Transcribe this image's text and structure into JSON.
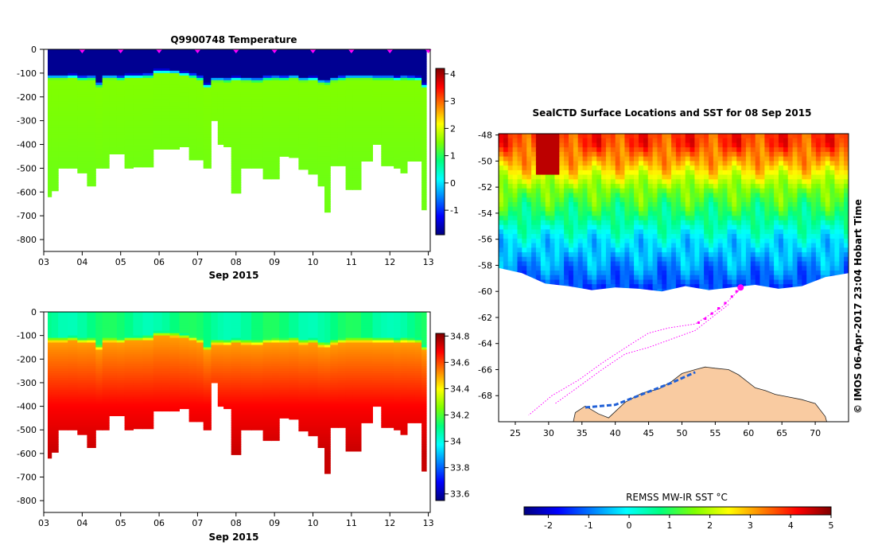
{
  "chart_data": [
    {
      "id": "temperature",
      "type": "heatmap",
      "title": "Q9900748  Temperature",
      "xlabel": "Sep 2015",
      "ylabel": "",
      "xlim": [
        3.0,
        13.05
      ],
      "ylim": [
        -850,
        0
      ],
      "x_ticks": [
        3,
        4,
        5,
        6,
        7,
        8,
        9,
        10,
        11,
        12,
        13
      ],
      "x_tick_labels": [
        "03",
        "04",
        "05",
        "06",
        "07",
        "08",
        "09",
        "10",
        "11",
        "12",
        "13"
      ],
      "y_ticks": [
        0,
        -100,
        -200,
        -300,
        -400,
        -500,
        -600,
        -700,
        -800
      ],
      "y_tick_labels": [
        "0",
        "-100",
        "-200",
        "-300",
        "-400",
        "-500",
        "-600",
        "-700",
        "-800"
      ],
      "colorbar": {
        "min": -1.9,
        "max": 4.2,
        "ticks": [
          4,
          3,
          2,
          1,
          0,
          -1
        ],
        "tick_labels": [
          "4",
          "3",
          "2",
          "1",
          "0",
          "-1"
        ]
      },
      "profile_times": [
        3.15,
        3.25,
        3.5,
        3.75,
        4.0,
        4.25,
        4.45,
        4.6,
        4.8,
        5.0,
        5.2,
        5.45,
        5.7,
        6.0,
        6.15,
        6.4,
        6.65,
        6.9,
        7.05,
        7.25,
        7.45,
        7.6,
        7.75,
        8.0,
        8.25,
        8.55,
        8.85,
        9.0,
        9.25,
        9.5,
        9.75,
        10.0,
        10.25,
        10.35,
        10.55,
        10.75,
        10.95,
        11.1,
        11.4,
        11.7,
        11.85,
        12.0,
        12.2,
        12.35,
        12.55,
        12.75,
        12.9,
        13.0
      ],
      "surface_markers": [
        4.0,
        5.0,
        6.0,
        7.0,
        8.0,
        9.0,
        10.0,
        11.0,
        12.0,
        13.0
      ],
      "profiles": [
        {
          "t": 3.15,
          "mld": 118,
          "depth": 620,
          "surface": -1.8,
          "deep": 1.5
        },
        {
          "t": 3.25,
          "mld": 118,
          "depth": 595,
          "surface": -1.8,
          "deep": 1.5
        },
        {
          "t": 3.5,
          "mld": 118,
          "depth": 500,
          "surface": -1.8,
          "deep": 1.5
        },
        {
          "t": 3.75,
          "mld": 115,
          "depth": 500,
          "surface": -1.8,
          "deep": 1.5
        },
        {
          "t": 4.0,
          "mld": 122,
          "depth": 520,
          "surface": -1.8,
          "deep": 1.5
        },
        {
          "t": 4.25,
          "mld": 120,
          "depth": 575,
          "surface": -1.8,
          "deep": 1.5
        },
        {
          "t": 4.45,
          "mld": 150,
          "depth": 500,
          "surface": -1.8,
          "deep": 1.5
        },
        {
          "t": 4.6,
          "mld": 118,
          "depth": 500,
          "surface": -1.8,
          "deep": 1.5
        },
        {
          "t": 4.8,
          "mld": 118,
          "depth": 440,
          "surface": -1.8,
          "deep": 1.5
        },
        {
          "t": 5.0,
          "mld": 122,
          "depth": 440,
          "surface": -1.8,
          "deep": 1.5
        },
        {
          "t": 5.2,
          "mld": 115,
          "depth": 500,
          "surface": -1.8,
          "deep": 1.5
        },
        {
          "t": 5.45,
          "mld": 115,
          "depth": 495,
          "surface": -1.8,
          "deep": 1.5
        },
        {
          "t": 5.7,
          "mld": 112,
          "depth": 495,
          "surface": -1.8,
          "deep": 1.5
        },
        {
          "t": 6.0,
          "mld": 95,
          "depth": 420,
          "surface": -1.8,
          "deep": 1.5
        },
        {
          "t": 6.15,
          "mld": 95,
          "depth": 420,
          "surface": -1.8,
          "deep": 1.5
        },
        {
          "t": 6.4,
          "mld": 97,
          "depth": 420,
          "surface": -1.8,
          "deep": 1.5
        },
        {
          "t": 6.65,
          "mld": 105,
          "depth": 410,
          "surface": -1.8,
          "deep": 1.5
        },
        {
          "t": 6.9,
          "mld": 112,
          "depth": 465,
          "surface": -1.8,
          "deep": 1.5
        },
        {
          "t": 7.05,
          "mld": 122,
          "depth": 465,
          "surface": -1.8,
          "deep": 1.5
        },
        {
          "t": 7.25,
          "mld": 155,
          "depth": 500,
          "surface": -1.8,
          "deep": 1.5
        },
        {
          "t": 7.45,
          "mld": 128,
          "depth": 300,
          "surface": -1.8,
          "deep": 1.5
        },
        {
          "t": 7.6,
          "mld": 128,
          "depth": 400,
          "surface": -1.8,
          "deep": 1.5
        },
        {
          "t": 7.75,
          "mld": 130,
          "depth": 410,
          "surface": -1.8,
          "deep": 1.5
        },
        {
          "t": 8.0,
          "mld": 125,
          "depth": 605,
          "surface": -1.8,
          "deep": 1.5
        },
        {
          "t": 8.25,
          "mld": 128,
          "depth": 500,
          "surface": -1.8,
          "deep": 1.5
        },
        {
          "t": 8.55,
          "mld": 130,
          "depth": 500,
          "surface": -1.8,
          "deep": 1.5
        },
        {
          "t": 8.85,
          "mld": 122,
          "depth": 545,
          "surface": -1.8,
          "deep": 1.5
        },
        {
          "t": 9.0,
          "mld": 120,
          "depth": 545,
          "surface": -1.8,
          "deep": 1.5
        },
        {
          "t": 9.25,
          "mld": 122,
          "depth": 450,
          "surface": -1.8,
          "deep": 1.5
        },
        {
          "t": 9.5,
          "mld": 118,
          "depth": 455,
          "surface": -1.8,
          "deep": 1.5
        },
        {
          "t": 9.75,
          "mld": 128,
          "depth": 505,
          "surface": -1.8,
          "deep": 1.5
        },
        {
          "t": 10.0,
          "mld": 125,
          "depth": 525,
          "surface": -1.8,
          "deep": 1.5
        },
        {
          "t": 10.25,
          "mld": 138,
          "depth": 575,
          "surface": -1.8,
          "deep": 1.5
        },
        {
          "t": 10.35,
          "mld": 140,
          "depth": 685,
          "surface": -1.8,
          "deep": 1.5
        },
        {
          "t": 10.55,
          "mld": 128,
          "depth": 490,
          "surface": -1.8,
          "deep": 1.5
        },
        {
          "t": 10.75,
          "mld": 122,
          "depth": 490,
          "surface": -1.8,
          "deep": 1.5
        },
        {
          "t": 10.95,
          "mld": 118,
          "depth": 590,
          "surface": -1.8,
          "deep": 1.5
        },
        {
          "t": 11.1,
          "mld": 118,
          "depth": 590,
          "surface": -1.8,
          "deep": 1.5
        },
        {
          "t": 11.4,
          "mld": 118,
          "depth": 470,
          "surface": -1.8,
          "deep": 1.5
        },
        {
          "t": 11.7,
          "mld": 120,
          "depth": 400,
          "surface": -1.8,
          "deep": 1.5
        },
        {
          "t": 11.85,
          "mld": 120,
          "depth": 490,
          "surface": -1.8,
          "deep": 1.5
        },
        {
          "t": 12.0,
          "mld": 120,
          "depth": 490,
          "surface": -1.8,
          "deep": 1.5
        },
        {
          "t": 12.2,
          "mld": 125,
          "depth": 500,
          "surface": -1.8,
          "deep": 1.5
        },
        {
          "t": 12.35,
          "mld": 120,
          "depth": 520,
          "surface": -1.8,
          "deep": 1.5
        },
        {
          "t": 12.55,
          "mld": 122,
          "depth": 470,
          "surface": -1.8,
          "deep": 1.5
        },
        {
          "t": 12.75,
          "mld": 125,
          "depth": 470,
          "surface": -1.8,
          "deep": 1.5
        },
        {
          "t": 12.9,
          "mld": 155,
          "depth": 675,
          "surface": -1.8,
          "deep": 1.5
        },
        {
          "t": 13.0,
          "mld": 155,
          "depth": 675,
          "surface": -1.8,
          "deep": 1.5
        }
      ]
    },
    {
      "id": "salinity",
      "type": "heatmap",
      "title": "",
      "xlabel": "Sep 2015",
      "ylabel": "",
      "xlim": [
        3.0,
        13.05
      ],
      "ylim": [
        -850,
        0
      ],
      "x_ticks": [
        3,
        4,
        5,
        6,
        7,
        8,
        9,
        10,
        11,
        12,
        13
      ],
      "x_tick_labels": [
        "03",
        "04",
        "05",
        "06",
        "07",
        "08",
        "09",
        "10",
        "11",
        "12",
        "13"
      ],
      "y_ticks": [
        0,
        -100,
        -200,
        -300,
        -400,
        -500,
        -600,
        -700,
        -800
      ],
      "y_tick_labels": [
        "0",
        "-100",
        "-200",
        "-300",
        "-400",
        "-500",
        "-600",
        "-700",
        "-800"
      ],
      "colorbar": {
        "min": 33.55,
        "max": 34.82,
        "ticks": [
          34.8,
          34.6,
          34.4,
          34.2,
          34,
          33.8,
          33.6
        ],
        "tick_labels": [
          "34.8",
          "34.6",
          "34.4",
          "34.2",
          "34",
          "33.8",
          "33.6"
        ]
      },
      "profile_times": "same as temperature",
      "surface_value": 34.1,
      "value_at_mld": 34.5,
      "value_at_400m": 34.68,
      "value_at_600m": 34.74
    },
    {
      "id": "sst_map",
      "type": "heatmap",
      "title": "SealCTD Surface Locations and SST for 08 Sep 2015",
      "xlabel": "",
      "ylabel": "",
      "xlim": [
        22.5,
        75.0
      ],
      "ylim": [
        -70.0,
        -47.9
      ],
      "x_ticks": [
        25,
        30,
        35,
        40,
        45,
        50,
        55,
        60,
        65,
        70
      ],
      "x_tick_labels": [
        "25",
        "30",
        "35",
        "40",
        "45",
        "50",
        "55",
        "60",
        "65",
        "70"
      ],
      "y_ticks": [
        -48,
        -50,
        -52,
        -54,
        -56,
        -58,
        -60,
        -62,
        -64,
        -66,
        -68
      ],
      "y_tick_labels": [
        "-48",
        "-50",
        "-52",
        "-54",
        "-56",
        "-58",
        "-60",
        "-62",
        "-64",
        "-66",
        "-68"
      ],
      "colorbar": {
        "label": "REMSS MW-IR SST °C",
        "min": -2.6,
        "max": 5.0,
        "ticks": [
          -2,
          -1,
          0,
          1,
          2,
          3,
          4,
          5
        ],
        "tick_labels": [
          "-2",
          "-1",
          "0",
          "1",
          "2",
          "3",
          "4",
          "5"
        ]
      },
      "sst_pattern": [
        {
          "lat": -48.5,
          "value": 3.8
        },
        {
          "lat": -50.0,
          "value": 3.0
        },
        {
          "lat": -52.0,
          "value": 1.6
        },
        {
          "lat": -54.0,
          "value": 0.8
        },
        {
          "lat": -56.0,
          "value": -0.2
        },
        {
          "lat": -58.0,
          "value": -0.8
        },
        {
          "lat": -59.5,
          "value": -1.3
        }
      ],
      "ice_edge_lat": -59.9,
      "land_color": "#f9cba1",
      "track_color": "#ff00ff",
      "latest_position": {
        "lon": 58.8,
        "lat": -59.7
      },
      "surface_locations": [
        {
          "lon": 52.5,
          "lat": -62.4
        },
        {
          "lon": 53.5,
          "lat": -62.1
        },
        {
          "lon": 54.5,
          "lat": -61.7
        },
        {
          "lon": 55.5,
          "lat": -61.3
        },
        {
          "lon": 56.5,
          "lat": -60.9
        },
        {
          "lon": 57.5,
          "lat": -60.4
        },
        {
          "lon": 58.2,
          "lat": -60.0
        },
        {
          "lon": 58.8,
          "lat": -59.7
        }
      ],
      "track": [
        {
          "lon": 58.8,
          "lat": -59.8
        },
        {
          "lon": 56.0,
          "lat": -61.2
        },
        {
          "lon": 52.0,
          "lat": -62.5
        },
        {
          "lon": 48.0,
          "lat": -62.8
        },
        {
          "lon": 45.0,
          "lat": -63.2
        },
        {
          "lon": 42.5,
          "lat": -64.0
        },
        {
          "lon": 38.0,
          "lat": -65.5
        },
        {
          "lon": 34.5,
          "lat": -66.8
        },
        {
          "lon": 30.5,
          "lat": -68.0
        },
        {
          "lon": 27.0,
          "lat": -69.5
        }
      ],
      "track_2": [
        {
          "lon": 57.0,
          "lat": -61.0
        },
        {
          "lon": 52.0,
          "lat": -63.0
        },
        {
          "lon": 45.0,
          "lat": -64.3
        },
        {
          "lon": 41.5,
          "lat": -64.8
        },
        {
          "lon": 38.0,
          "lat": -66.0
        },
        {
          "lon": 34.0,
          "lat": -67.5
        },
        {
          "lon": 31.0,
          "lat": -68.6
        }
      ]
    }
  ],
  "credit": "©  IMOS 06-Apr-2017 23:04 Hobart Time",
  "colors": {
    "temp_ramp": [
      "#00007f",
      "#0000ff",
      "#007fff",
      "#00ffff",
      "#00ff7f",
      "#7fff00",
      "#ffff00",
      "#ff7f00",
      "#ff0000",
      "#7f0000"
    ],
    "sst_ramp": [
      "#00007f",
      "#0000ff",
      "#007fff",
      "#00ffff",
      "#00ff7f",
      "#7fff00",
      "#ffff00",
      "#ff7f00",
      "#ff0000",
      "#7f0000"
    ],
    "marker": "#ff00ff"
  }
}
